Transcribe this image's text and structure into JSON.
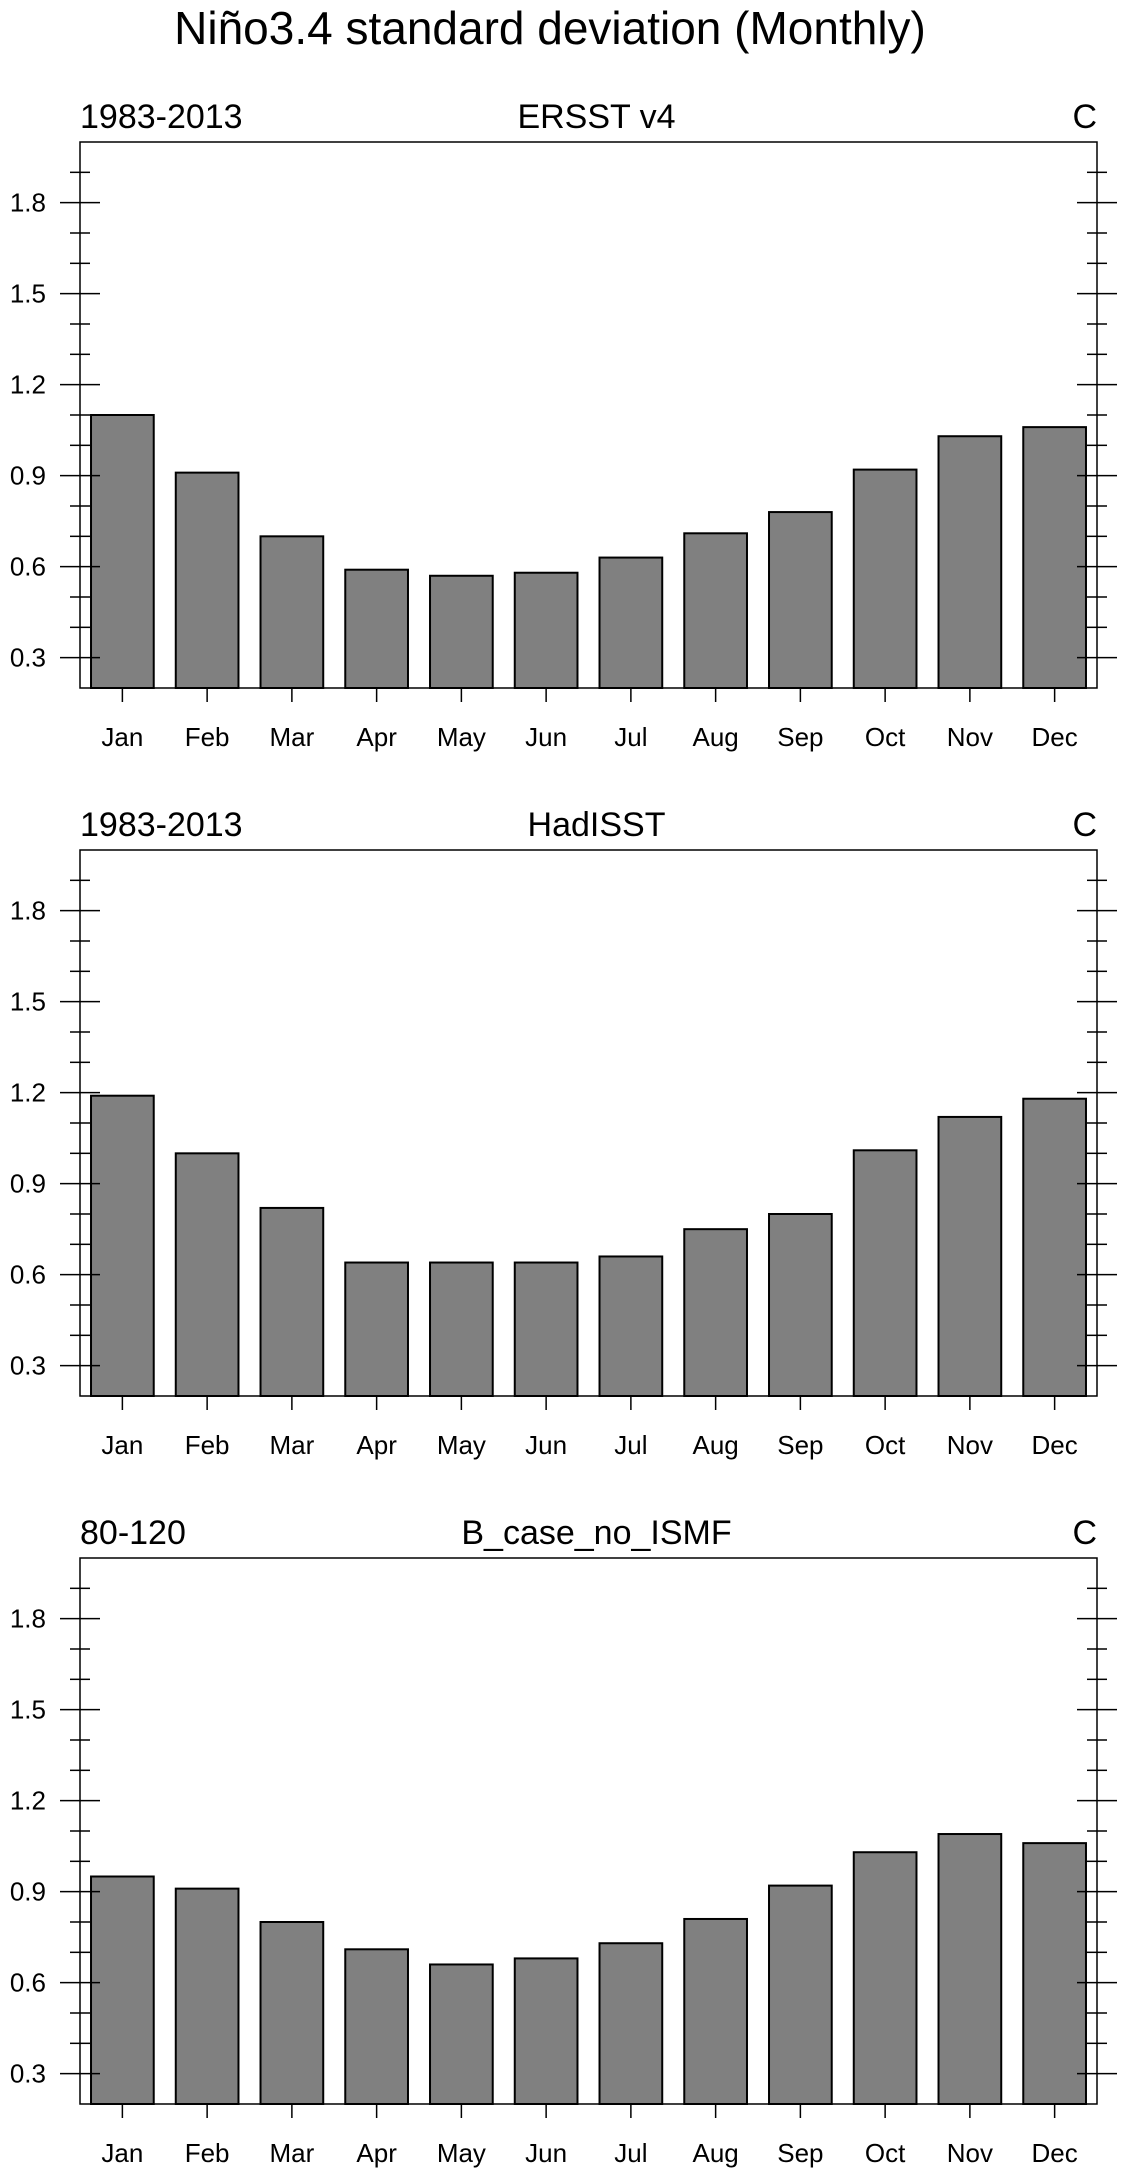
{
  "figure": {
    "title": "Niño3.4 standard deviation (Monthly)"
  },
  "colors": {
    "bar_fill": "#808080",
    "bar_stroke": "#000000",
    "axis": "#000000",
    "background": "#ffffff"
  },
  "chart_data": [
    {
      "type": "bar",
      "title": "ERSST v4",
      "left_label": "1983-2013",
      "right_label": "C",
      "categories": [
        "Jan",
        "Feb",
        "Mar",
        "Apr",
        "May",
        "Jun",
        "Jul",
        "Aug",
        "Sep",
        "Oct",
        "Nov",
        "Dec"
      ],
      "values": [
        1.1,
        0.91,
        0.7,
        0.59,
        0.57,
        0.58,
        0.63,
        0.71,
        0.78,
        0.92,
        1.03,
        1.06
      ],
      "ylim": [
        0.2,
        2.0
      ],
      "yticks": [
        0.3,
        0.6,
        0.9,
        1.2,
        1.5,
        1.8
      ],
      "ytick_labels": [
        "0.3",
        "0.6",
        "0.9",
        "1.2",
        "1.5",
        "1.8"
      ],
      "grid": false
    },
    {
      "type": "bar",
      "title": "HadISST",
      "left_label": "1983-2013",
      "right_label": "C",
      "categories": [
        "Jan",
        "Feb",
        "Mar",
        "Apr",
        "May",
        "Jun",
        "Jul",
        "Aug",
        "Sep",
        "Oct",
        "Nov",
        "Dec"
      ],
      "values": [
        1.19,
        1.0,
        0.82,
        0.64,
        0.64,
        0.64,
        0.66,
        0.75,
        0.8,
        1.01,
        1.12,
        1.18
      ],
      "ylim": [
        0.2,
        2.0
      ],
      "yticks": [
        0.3,
        0.6,
        0.9,
        1.2,
        1.5,
        1.8
      ],
      "ytick_labels": [
        "0.3",
        "0.6",
        "0.9",
        "1.2",
        "1.5",
        "1.8"
      ],
      "grid": false
    },
    {
      "type": "bar",
      "title": "B_case_no_ISMF",
      "left_label": "80-120",
      "right_label": "C",
      "categories": [
        "Jan",
        "Feb",
        "Mar",
        "Apr",
        "May",
        "Jun",
        "Jul",
        "Aug",
        "Sep",
        "Oct",
        "Nov",
        "Dec"
      ],
      "values": [
        0.95,
        0.91,
        0.8,
        0.71,
        0.66,
        0.68,
        0.73,
        0.81,
        0.92,
        1.03,
        1.09,
        1.06
      ],
      "ylim": [
        0.2,
        2.0
      ],
      "yticks": [
        0.3,
        0.6,
        0.9,
        1.2,
        1.5,
        1.8
      ],
      "ytick_labels": [
        "0.3",
        "0.6",
        "0.9",
        "1.2",
        "1.5",
        "1.8"
      ],
      "grid": false
    }
  ]
}
